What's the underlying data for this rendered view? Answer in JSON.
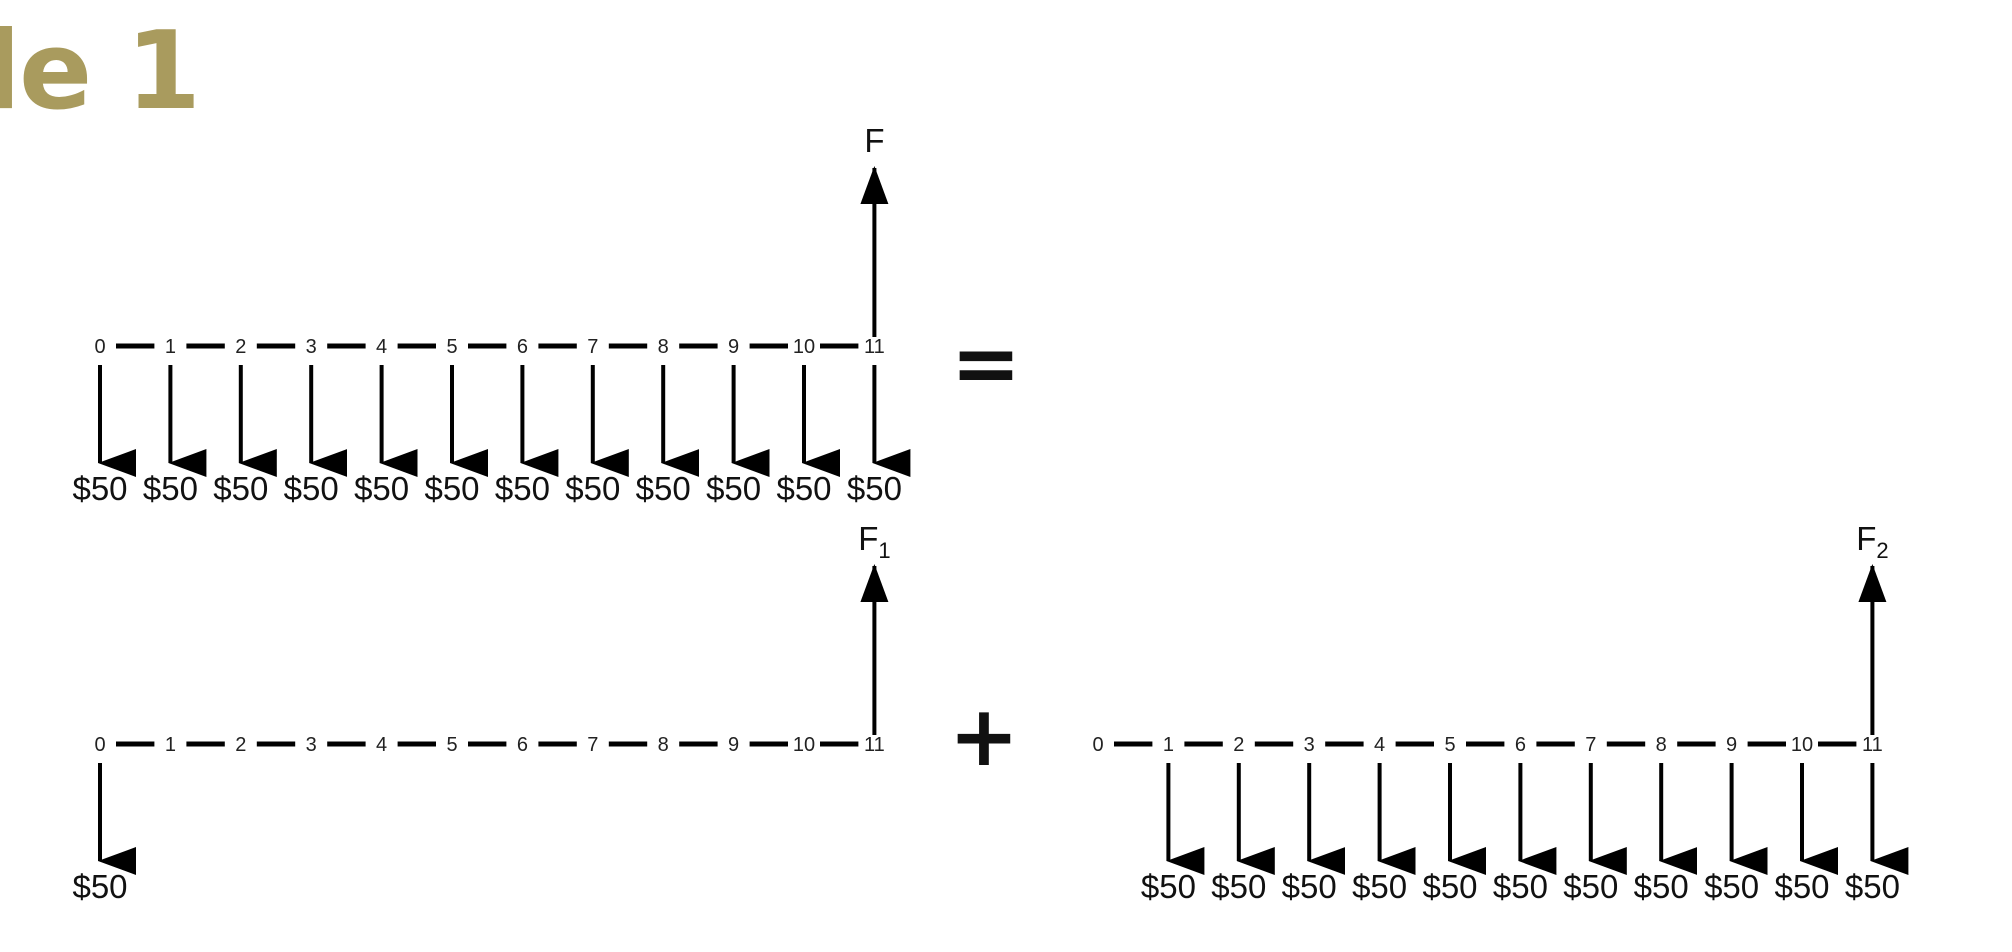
{
  "title": "le 1",
  "operators": {
    "equals": "=",
    "plus": "+"
  },
  "diagrams": [
    {
      "id": "top",
      "periods": [
        "0",
        "1",
        "2",
        "3",
        "4",
        "5",
        "6",
        "7",
        "8",
        "9",
        "10",
        "11"
      ],
      "payments": [
        {
          "period": 0,
          "amount": "$50"
        },
        {
          "period": 1,
          "amount": "$50"
        },
        {
          "period": 2,
          "amount": "$50"
        },
        {
          "period": 3,
          "amount": "$50"
        },
        {
          "period": 4,
          "amount": "$50"
        },
        {
          "period": 5,
          "amount": "$50"
        },
        {
          "period": 6,
          "amount": "$50"
        },
        {
          "period": 7,
          "amount": "$50"
        },
        {
          "period": 8,
          "amount": "$50"
        },
        {
          "period": 9,
          "amount": "$50"
        },
        {
          "period": 10,
          "amount": "$50"
        },
        {
          "period": 11,
          "amount": "$50"
        }
      ],
      "future_value": {
        "period": 11,
        "label": "F",
        "subscript": ""
      }
    },
    {
      "id": "bottom-left",
      "periods": [
        "0",
        "1",
        "2",
        "3",
        "4",
        "5",
        "6",
        "7",
        "8",
        "9",
        "10",
        "11"
      ],
      "payments": [
        {
          "period": 0,
          "amount": "$50"
        }
      ],
      "future_value": {
        "period": 11,
        "label": "F",
        "subscript": "1"
      }
    },
    {
      "id": "bottom-right",
      "periods": [
        "0",
        "1",
        "2",
        "3",
        "4",
        "5",
        "6",
        "7",
        "8",
        "9",
        "10",
        "11"
      ],
      "payments": [
        {
          "period": 1,
          "amount": "$50"
        },
        {
          "period": 2,
          "amount": "$50"
        },
        {
          "period": 3,
          "amount": "$50"
        },
        {
          "period": 4,
          "amount": "$50"
        },
        {
          "period": 5,
          "amount": "$50"
        },
        {
          "period": 6,
          "amount": "$50"
        },
        {
          "period": 7,
          "amount": "$50"
        },
        {
          "period": 8,
          "amount": "$50"
        },
        {
          "period": 9,
          "amount": "$50"
        },
        {
          "period": 10,
          "amount": "$50"
        },
        {
          "period": 11,
          "amount": "$50"
        }
      ],
      "future_value": {
        "period": 11,
        "label": "F",
        "subscript": "2"
      }
    }
  ]
}
